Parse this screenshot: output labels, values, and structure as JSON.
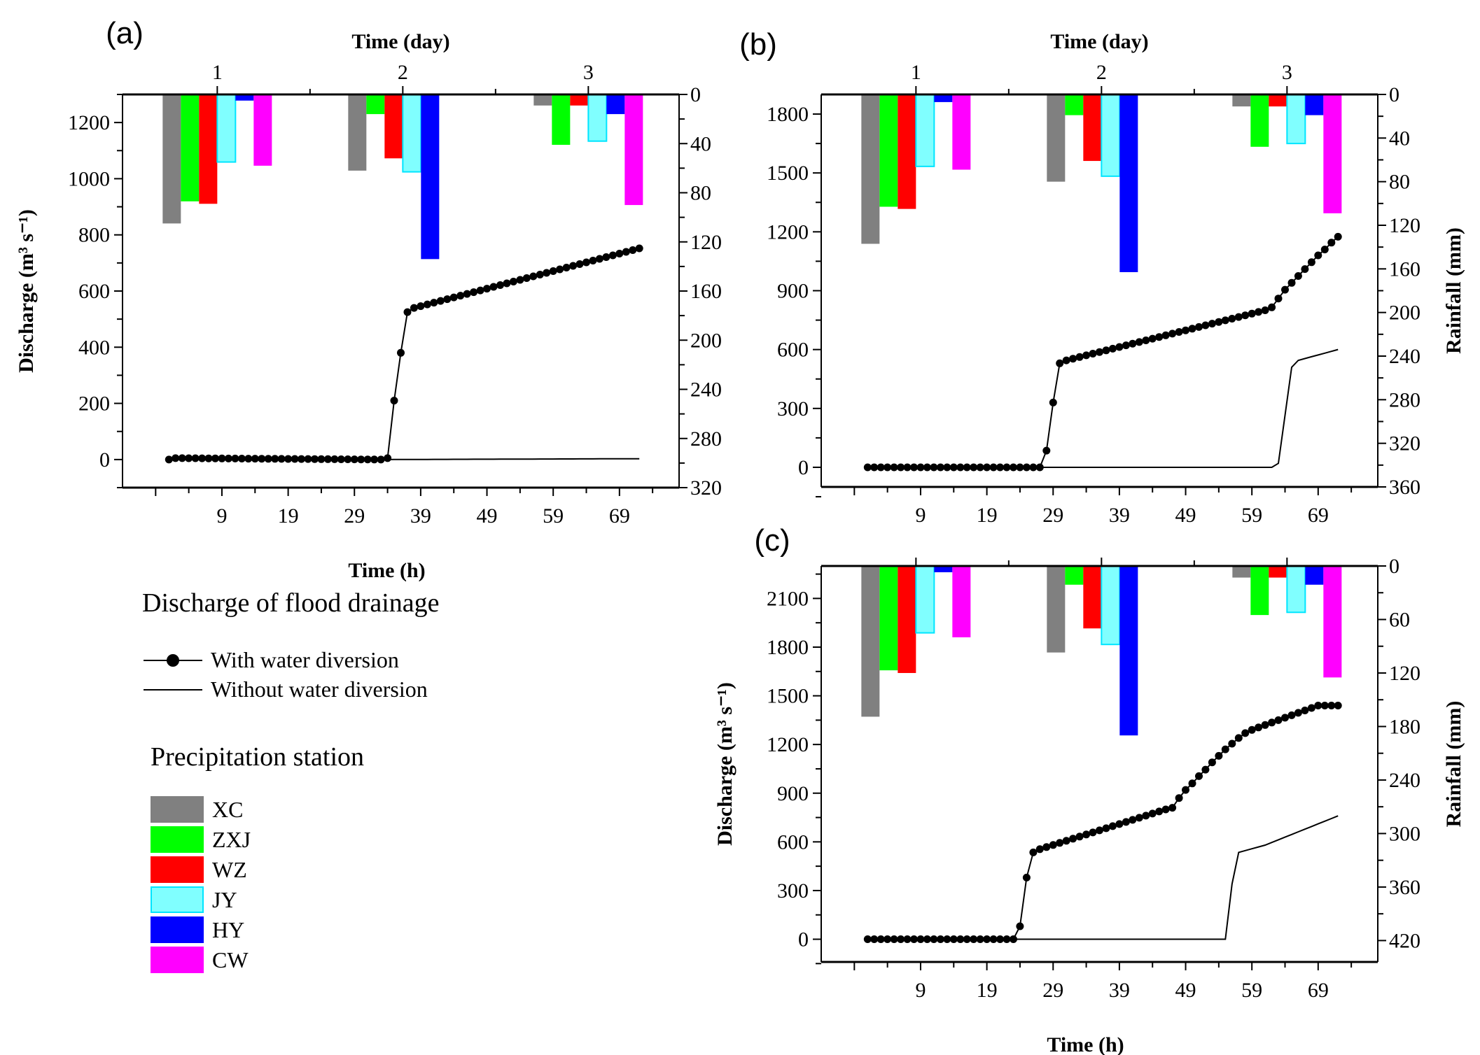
{
  "chart_data": [
    {
      "id": "a",
      "type": "bar+line",
      "panel_label": "(a)",
      "top_xlabel": "Time (day)",
      "xlabel": "Time (h)",
      "ylabel": "Discharge (m³ s⁻¹)",
      "y2label": "",
      "xlim": [
        -6,
        78
      ],
      "ylim": [
        -100,
        1300
      ],
      "y2lim": [
        0,
        320
      ],
      "y2_inverted": true,
      "x_ticks": [
        9,
        19,
        29,
        39,
        49,
        59,
        69
      ],
      "y_ticks": [
        0,
        200,
        400,
        600,
        800,
        1000,
        1200
      ],
      "y2_ticks": [
        0,
        40,
        80,
        120,
        160,
        200,
        240,
        280,
        320
      ],
      "day_ticks": [
        1,
        2,
        3
      ],
      "rainfall_mm": {
        "XC": [
          105,
          62,
          9
        ],
        "ZXJ": [
          87,
          16,
          41
        ],
        "WZ": [
          89,
          52,
          9
        ],
        "JY": [
          55,
          63,
          38
        ],
        "HY": [
          5,
          134,
          16
        ],
        "CW": [
          58,
          0,
          90
        ]
      },
      "series": [
        {
          "name": "With water diversion",
          "markers": true,
          "points": [
            [
              1,
              0
            ],
            [
              2,
              5
            ],
            [
              33,
              0
            ],
            [
              34,
              5
            ],
            [
              35,
              210
            ],
            [
              36,
              380
            ],
            [
              37,
              525
            ],
            [
              38,
              540
            ],
            [
              72,
              752
            ]
          ]
        },
        {
          "name": "Without water diversion",
          "markers": false,
          "points": [
            [
              34,
              0
            ],
            [
              72,
              3
            ]
          ]
        }
      ]
    },
    {
      "id": "b",
      "type": "bar+line",
      "panel_label": "(b)",
      "top_xlabel": "Time (day)",
      "xlabel": "",
      "ylabel": "",
      "y2label": "Rainfall (mm)",
      "xlim": [
        -6,
        78
      ],
      "ylim": [
        -100,
        1900
      ],
      "y2lim": [
        0,
        360
      ],
      "y2_inverted": true,
      "x_ticks": [
        9,
        19,
        29,
        39,
        49,
        59,
        69
      ],
      "y_ticks": [
        0,
        300,
        600,
        900,
        1200,
        1500,
        1800
      ],
      "y2_ticks": [
        0,
        40,
        80,
        120,
        160,
        200,
        240,
        280,
        320,
        360
      ],
      "day_ticks": [
        1,
        2,
        3
      ],
      "rainfall_mm": {
        "XC": [
          137,
          80,
          11
        ],
        "ZXJ": [
          103,
          19,
          48
        ],
        "WZ": [
          105,
          61,
          11
        ],
        "JY": [
          66,
          75,
          45
        ],
        "HY": [
          7,
          163,
          19
        ],
        "CW": [
          69,
          0,
          109
        ]
      },
      "series": [
        {
          "name": "With water diversion",
          "markers": true,
          "points": [
            [
              1,
              0
            ],
            [
              27,
              0
            ],
            [
              28,
              85
            ],
            [
              29,
              330
            ],
            [
              30,
              530
            ],
            [
              31,
              545
            ],
            [
              61,
              800
            ],
            [
              62,
              815
            ],
            [
              63,
              860
            ],
            [
              64,
              905
            ],
            [
              65,
              940
            ],
            [
              66,
              975
            ],
            [
              67,
              1010
            ],
            [
              68,
              1045
            ],
            [
              69,
              1080
            ],
            [
              70,
              1110
            ],
            [
              71,
              1145
            ],
            [
              72,
              1175
            ]
          ]
        },
        {
          "name": "Without water diversion",
          "markers": false,
          "points": [
            [
              1,
              0
            ],
            [
              62,
              0
            ],
            [
              63,
              20
            ],
            [
              65,
              510
            ],
            [
              66,
              545
            ],
            [
              72,
              600
            ]
          ]
        }
      ]
    },
    {
      "id": "c",
      "type": "bar+line",
      "panel_label": "(c)",
      "top_xlabel": "",
      "xlabel": "Time (h)",
      "ylabel": "Discharge (m³ s⁻¹)",
      "y2label": "Rainfall (mm)",
      "xlim": [
        -6,
        78
      ],
      "ylim": [
        -140,
        2300
      ],
      "y2lim": [
        0,
        444
      ],
      "y2_inverted": true,
      "x_ticks": [
        9,
        19,
        29,
        39,
        49,
        59,
        69
      ],
      "y_ticks": [
        0,
        300,
        600,
        900,
        1200,
        1500,
        1800,
        2100
      ],
      "y2_ticks": [
        0,
        60,
        120,
        180,
        240,
        300,
        360,
        420
      ],
      "day_ticks": [
        1,
        2,
        3
      ],
      "rainfall_mm": {
        "XC": [
          169,
          97,
          13
        ],
        "ZXJ": [
          117,
          21,
          55
        ],
        "WZ": [
          120,
          70,
          13
        ],
        "JY": [
          75,
          88,
          52
        ],
        "HY": [
          7,
          190,
          21
        ],
        "CW": [
          80,
          0,
          125
        ]
      },
      "series": [
        {
          "name": "With water diversion",
          "markers": true,
          "points": [
            [
              1,
              0
            ],
            [
              23,
              0
            ],
            [
              24,
              80
            ],
            [
              25,
              380
            ],
            [
              26,
              535
            ],
            [
              27,
              555
            ],
            [
              46,
              800
            ],
            [
              47,
              810
            ],
            [
              48,
              870
            ],
            [
              49,
              920
            ],
            [
              50,
              960
            ],
            [
              51,
              1005
            ],
            [
              52,
              1045
            ],
            [
              53,
              1090
            ],
            [
              54,
              1130
            ],
            [
              55,
              1170
            ],
            [
              56,
              1205
            ],
            [
              57,
              1240
            ],
            [
              58,
              1270
            ],
            [
              59,
              1290
            ],
            [
              60,
              1305
            ],
            [
              61,
              1320
            ],
            [
              62,
              1335
            ],
            [
              63,
              1350
            ],
            [
              64,
              1365
            ],
            [
              65,
              1380
            ],
            [
              66,
              1395
            ],
            [
              67,
              1410
            ],
            [
              68,
              1425
            ],
            [
              69,
              1440
            ],
            [
              72,
              1440
            ]
          ]
        },
        {
          "name": "Without water diversion",
          "markers": false,
          "points": [
            [
              23,
              0
            ],
            [
              55,
              0
            ],
            [
              56,
              340
            ],
            [
              57,
              535
            ],
            [
              61,
              580
            ],
            [
              72,
              760
            ]
          ]
        }
      ]
    }
  ],
  "legend": {
    "line_title": "Discharge of flood drainage",
    "line_items": [
      {
        "label": "With water diversion",
        "marker": "filled-circle"
      },
      {
        "label": "Without water diversion",
        "marker": "none"
      }
    ],
    "station_title": "Precipitation station",
    "stations": [
      {
        "label": "XC",
        "color": "#808080"
      },
      {
        "label": "ZXJ",
        "color": "#00ff00"
      },
      {
        "label": "WZ",
        "color": "#ff0000"
      },
      {
        "label": "JY",
        "color": "#80ffff",
        "border": "#00e5ff"
      },
      {
        "label": "HY",
        "color": "#0000ff"
      },
      {
        "label": "CW",
        "color": "#ff00ff"
      }
    ]
  }
}
